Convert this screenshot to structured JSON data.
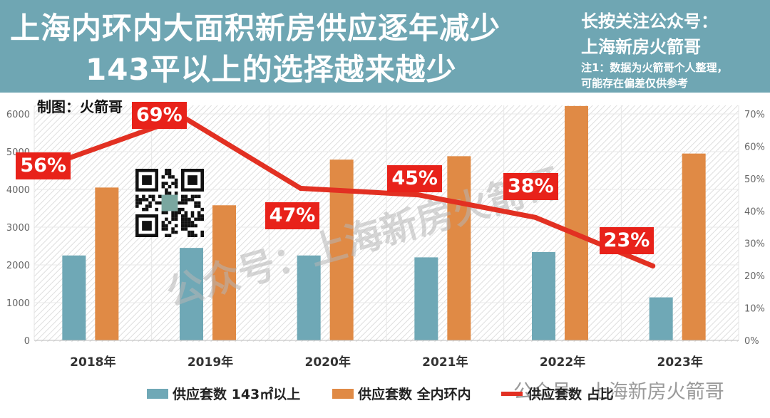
{
  "header": {
    "title_line1": "上海内环内大面积新房供应逐年减少",
    "title_line2": "143平以上的选择越来越少",
    "follow_line1": "长按关注公众号：",
    "follow_line2": "上海新房火箭哥",
    "note_line1": "注1：数据为火箭哥个人整理，",
    "note_line2": "可能存在偏差仅供参考"
  },
  "credit": "制图：火箭哥",
  "watermark": "公众号：上海新房火箭哥",
  "footer_watermark": "公众号 · 上海新房火箭哥",
  "colors": {
    "header_bg": "#6fa6b3",
    "series_large": "#6fa8b6",
    "series_total": "#e08a45",
    "series_ratio": "#e23022"
  },
  "chart_data": {
    "type": "bar",
    "categories": [
      "2018年",
      "2019年",
      "2020年",
      "2021年",
      "2022年",
      "2023年"
    ],
    "series": [
      {
        "name": "供应套数 143㎡以上",
        "type": "bar",
        "axis": "left",
        "values": [
          2250,
          2450,
          2250,
          2200,
          2340,
          1140
        ]
      },
      {
        "name": "供应套数 全内环内",
        "type": "bar",
        "axis": "left",
        "values": [
          4050,
          3580,
          4790,
          4880,
          6210,
          4950
        ]
      },
      {
        "name": "供应套数 占比",
        "type": "line",
        "axis": "right",
        "values": [
          56,
          69,
          47,
          45,
          38,
          23
        ],
        "labels": [
          "56%",
          "69%",
          "47%",
          "45%",
          "38%",
          "23%"
        ]
      }
    ],
    "left_axis": {
      "min": 0,
      "max": 6000,
      "ticks": [
        "0",
        "1000",
        "2000",
        "3000",
        "4000",
        "5000",
        "6000"
      ]
    },
    "right_axis": {
      "min": 0,
      "max": 70,
      "ticks": [
        "0%",
        "10%",
        "20%",
        "30%",
        "40%",
        "50%",
        "60%",
        "70%"
      ]
    },
    "grid": true,
    "legend_position": "bottom"
  }
}
